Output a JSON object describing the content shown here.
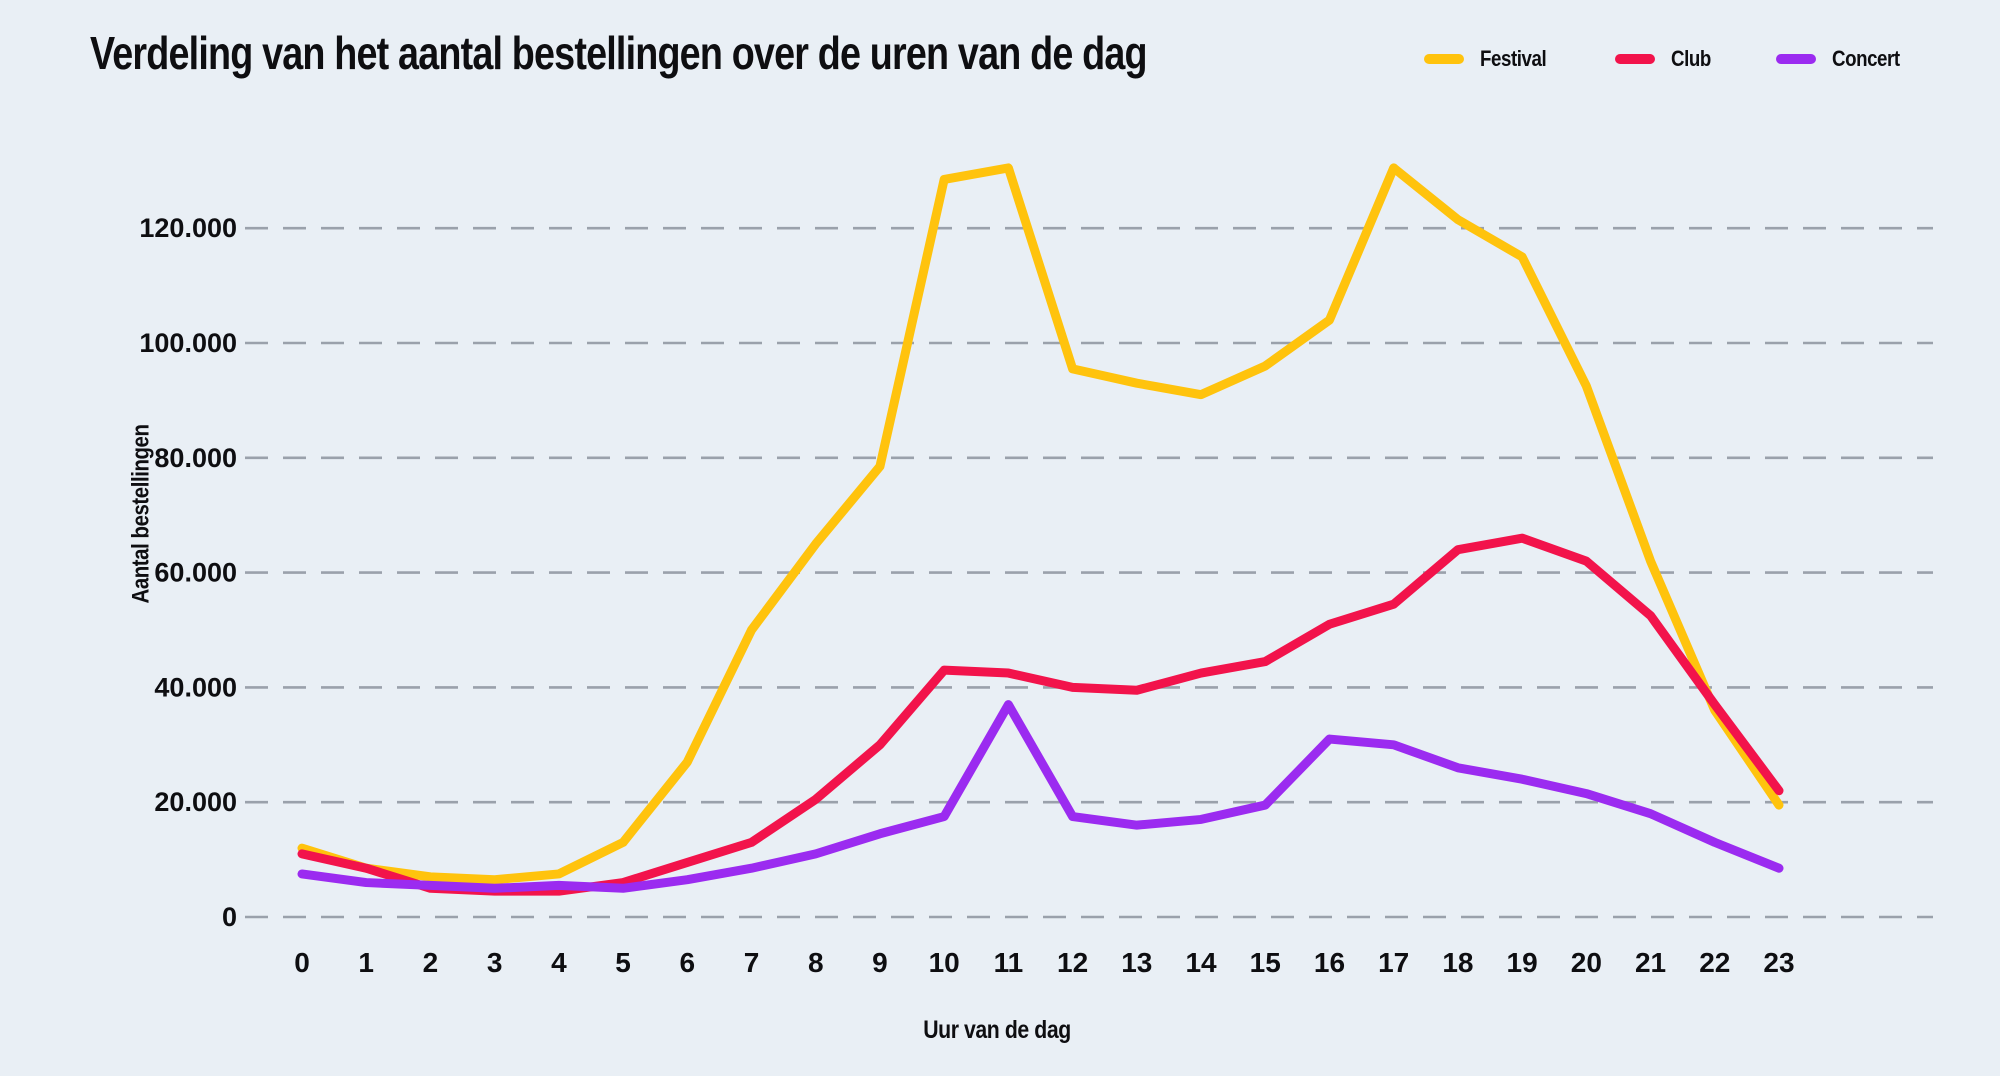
{
  "page": {
    "background_color": "#E9EFF5",
    "text_color": "#0E0E11",
    "gridline_color": "#9AA1AB"
  },
  "chart_data": {
    "type": "line",
    "title": "Verdeling van het aantal bestellingen over de uren van de dag",
    "xlabel": "Uur van de dag",
    "ylabel": "Aantal bestellingen",
    "grid": "horizontal-dashed",
    "legend_position": "top-right",
    "ylim": [
      0,
      138000
    ],
    "categories": [
      "0",
      "1",
      "2",
      "3",
      "4",
      "5",
      "6",
      "7",
      "8",
      "9",
      "10",
      "11",
      "12",
      "13",
      "14",
      "15",
      "16",
      "17",
      "18",
      "19",
      "20",
      "21",
      "22",
      "23"
    ],
    "y_ticks": {
      "values": [
        0,
        20000,
        40000,
        60000,
        80000,
        100000,
        120000
      ],
      "labels": [
        "0",
        "20.000",
        "40.000",
        "60.000",
        "80.000",
        "100.000",
        "120.000"
      ]
    },
    "series": [
      {
        "name": "Festival",
        "color": "#FFC30D",
        "values": [
          12000,
          8500,
          7000,
          6500,
          7500,
          13000,
          27000,
          50000,
          65000,
          78500,
          128500,
          130500,
          95500,
          93000,
          91000,
          96000,
          104000,
          130500,
          121500,
          115000,
          92500,
          62000,
          36000,
          19500
        ]
      },
      {
        "name": "Club",
        "color": "#F2134B",
        "values": [
          11000,
          8500,
          5000,
          4500,
          4500,
          6000,
          9500,
          13000,
          20500,
          30000,
          43000,
          42500,
          40000,
          39500,
          42500,
          44500,
          51000,
          54500,
          64000,
          66000,
          62000,
          52500,
          37000,
          22000
        ]
      },
      {
        "name": "Concert",
        "color": "#9B2BF0",
        "values": [
          7500,
          6000,
          5500,
          5000,
          5500,
          5000,
          6500,
          8500,
          11000,
          14500,
          17500,
          37000,
          17500,
          16000,
          17000,
          19500,
          31000,
          30000,
          26000,
          24000,
          21500,
          18000,
          13000,
          8500
        ]
      }
    ]
  }
}
